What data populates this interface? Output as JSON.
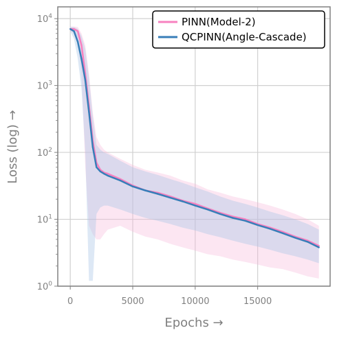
{
  "chart_data": {
    "type": "line",
    "title": "",
    "xlabel": "Epochs →",
    "ylabel": "Loss (log) →",
    "xlim": [
      -1000,
      20800
    ],
    "ylim": [
      1,
      15000
    ],
    "yscale": "log",
    "grid": true,
    "legend_position": "top-right",
    "x_ticks": [
      0,
      5000,
      10000,
      15000
    ],
    "x_tick_labels": [
      "0",
      "5000",
      "10000",
      "15000"
    ],
    "y_ticks": [
      1,
      10,
      100,
      1000,
      10000
    ],
    "y_tick_labels": [
      {
        "base": "10",
        "exp": "0"
      },
      {
        "base": "10",
        "exp": "1"
      },
      {
        "base": "10",
        "exp": "2"
      },
      {
        "base": "10",
        "exp": "3"
      },
      {
        "base": "10",
        "exp": "4"
      }
    ],
    "series": [
      {
        "name": "PINN(Model-2)",
        "color": "#f781bf",
        "band_color": "#f7b6d9",
        "x": [
          0,
          300,
          600,
          900,
          1200,
          1500,
          1800,
          2100,
          2400,
          2700,
          3000,
          4000,
          5000,
          6000,
          7000,
          8000,
          9000,
          10000,
          11000,
          12000,
          13000,
          14000,
          15000,
          16000,
          17000,
          18000,
          19000,
          19900
        ],
        "y": [
          7000,
          7000,
          6500,
          4000,
          1500,
          500,
          150,
          70,
          55,
          50,
          48,
          40,
          32,
          27,
          25,
          22,
          19,
          17,
          14.5,
          12.5,
          11,
          10,
          8.5,
          7.5,
          6.5,
          5.5,
          4.8,
          4.0
        ],
        "band_lower": [
          6500,
          6000,
          4500,
          1500,
          60,
          8,
          6,
          5,
          5,
          6,
          7,
          8,
          6.5,
          5.5,
          5,
          4.3,
          3.8,
          3.4,
          3.0,
          2.8,
          2.5,
          2.3,
          2.1,
          1.9,
          1.8,
          1.6,
          1.4,
          1.3
        ],
        "band_upper": [
          7600,
          7600,
          7500,
          6000,
          4000,
          1500,
          400,
          170,
          130,
          110,
          100,
          80,
          65,
          55,
          50,
          45,
          38,
          34,
          28,
          25,
          22,
          20,
          18,
          16,
          14,
          12,
          10,
          8
        ]
      },
      {
        "name": "QCPINN(Angle-Cascade)",
        "color": "#377eb8",
        "band_color": "#a9c6e6",
        "x": [
          0,
          300,
          600,
          900,
          1200,
          1500,
          1800,
          2100,
          2400,
          2700,
          3000,
          4000,
          5000,
          6000,
          7000,
          8000,
          9000,
          10000,
          11000,
          12000,
          13000,
          14000,
          15000,
          16000,
          17000,
          18000,
          19000,
          19900
        ],
        "y": [
          7000,
          6500,
          4500,
          2500,
          1200,
          400,
          120,
          60,
          52,
          48,
          45,
          38,
          31,
          27,
          24,
          21,
          18.5,
          16,
          14,
          12,
          10.5,
          9.5,
          8.2,
          7.2,
          6.2,
          5.3,
          4.6,
          3.8
        ],
        "band_lower": [
          6500,
          5000,
          2500,
          900,
          100,
          1.2,
          1.2,
          12,
          15,
          16,
          16,
          14,
          12,
          10.5,
          9.5,
          8.5,
          7.5,
          6.8,
          6.0,
          5.4,
          4.8,
          4.3,
          3.9,
          3.5,
          3.1,
          2.8,
          2.5,
          2.2
        ],
        "band_upper": [
          7500,
          7500,
          7000,
          5500,
          3500,
          1300,
          350,
          130,
          110,
          100,
          95,
          75,
          60,
          52,
          46,
          40,
          35,
          30,
          26,
          22,
          19,
          17,
          15,
          13,
          11.5,
          10,
          8.5,
          7
        ]
      }
    ]
  }
}
